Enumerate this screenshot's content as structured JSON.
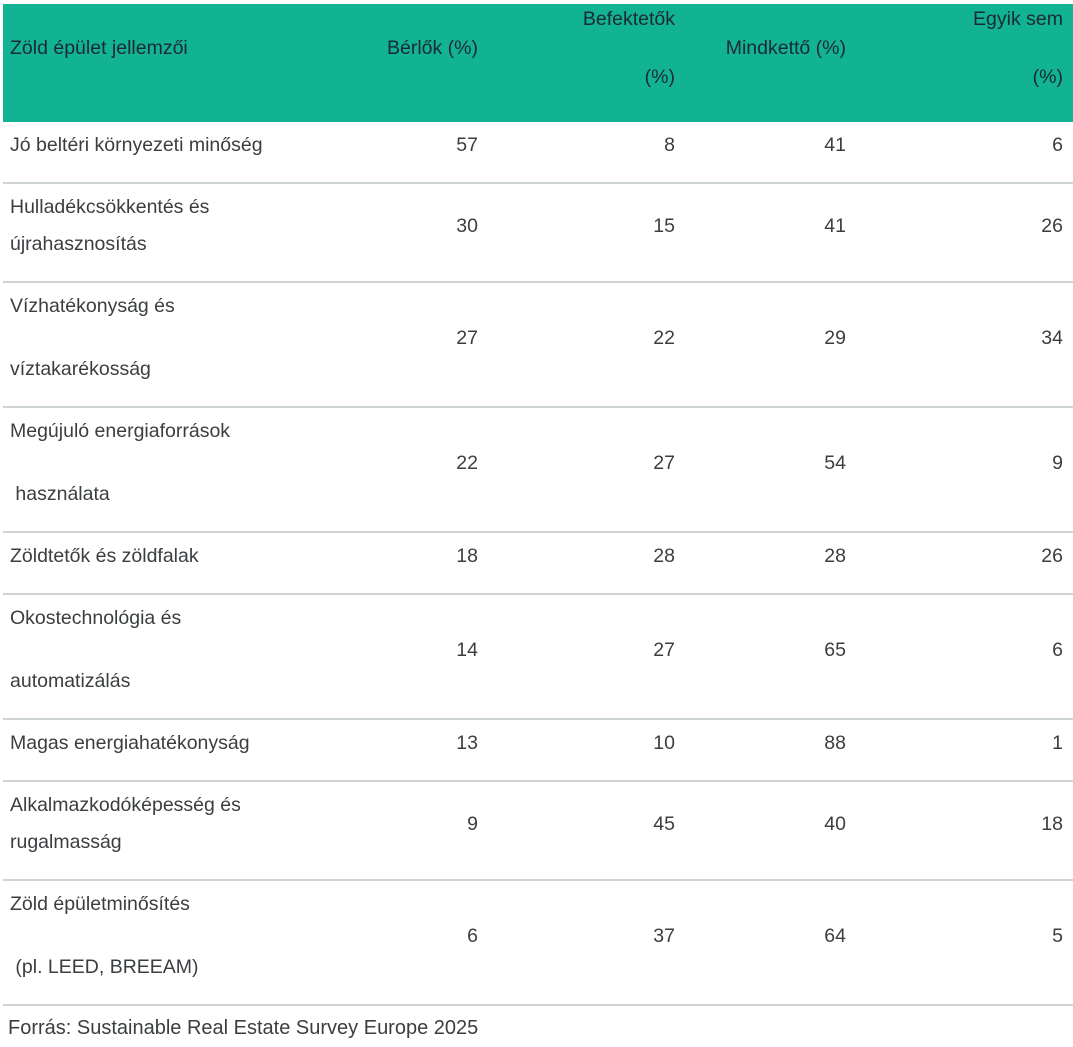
{
  "table": {
    "header": {
      "columns": [
        {
          "label_lines": [
            "Zöld épület jellemzői"
          ],
          "align": "left"
        },
        {
          "label_lines": [
            "Bérlők (%)"
          ],
          "align": "right"
        },
        {
          "label_lines": [
            "Befektetők",
            "(%)"
          ],
          "align": "right"
        },
        {
          "label_lines": [
            "Mindkettő (%)"
          ],
          "align": "right"
        },
        {
          "label_lines": [
            "Egyik sem",
            "(%)"
          ],
          "align": "right"
        }
      ]
    },
    "rows": [
      {
        "feature_lines": [
          "Jó beltéri környezeti minőség"
        ],
        "spacing": "single",
        "values": [
          57,
          8,
          41,
          6
        ]
      },
      {
        "feature_lines": [
          "Hulladékcsökkentés és",
          "újrahasznosítás"
        ],
        "spacing": "tight",
        "values": [
          30,
          15,
          41,
          26
        ]
      },
      {
        "feature_lines": [
          "Vízhatékonyság és",
          "víztakarékosság"
        ],
        "spacing": "spaced",
        "values": [
          27,
          22,
          29,
          34
        ]
      },
      {
        "feature_lines": [
          "Megújuló energiaforrások",
          " használata"
        ],
        "spacing": "spaced",
        "values": [
          22,
          27,
          54,
          9
        ]
      },
      {
        "feature_lines": [
          "Zöldtetők és zöldfalak"
        ],
        "spacing": "single",
        "values": [
          18,
          28,
          28,
          26
        ]
      },
      {
        "feature_lines": [
          "Okostechnológia és",
          "automatizálás"
        ],
        "spacing": "spaced",
        "values": [
          14,
          27,
          65,
          6
        ]
      },
      {
        "feature_lines": [
          "Magas energiahatékonyság"
        ],
        "spacing": "single",
        "values": [
          13,
          10,
          88,
          1
        ]
      },
      {
        "feature_lines": [
          "Alkalmazkodóképesség és",
          "rugalmasság"
        ],
        "spacing": "tight",
        "values": [
          9,
          45,
          40,
          18
        ]
      },
      {
        "feature_lines": [
          "Zöld épületminősítés",
          " (pl. LEED, BREEAM)"
        ],
        "spacing": "spaced",
        "values": [
          6,
          37,
          64,
          5
        ]
      }
    ],
    "source_note": "Forrás: Sustainable Real Estate Survey Europe 2025"
  },
  "colors": {
    "header_bg": "#11b394",
    "header_text": "#1c2a33",
    "body_text": "#3a3e41",
    "separator": "#ced4d4",
    "background": "#ffffff"
  },
  "chart_data": {
    "type": "table",
    "title": "",
    "categories": [
      "Jó beltéri környezeti minőség",
      "Hulladékcsökkentés és újrahasznosítás",
      "Vízhatékonyság és víztakarékosság",
      "Megújuló energiaforrások használata",
      "Zöldtetők és zöldfalak",
      "Okostechnológia és automatizálás",
      "Magas energiahatékonyság",
      "Alkalmazkodóképesség és rugalmasság",
      "Zöld épületminősítés (pl. LEED, BREEAM)"
    ],
    "row_header_label": "Zöld épület jellemzői",
    "series": [
      {
        "name": "Bérlők (%)",
        "values": [
          57,
          30,
          27,
          22,
          18,
          14,
          13,
          9,
          6
        ]
      },
      {
        "name": "Befektetők (%)",
        "values": [
          8,
          15,
          22,
          27,
          28,
          27,
          10,
          45,
          37
        ]
      },
      {
        "name": "Mindkettő (%)",
        "values": [
          41,
          41,
          29,
          54,
          28,
          65,
          88,
          40,
          64
        ]
      },
      {
        "name": "Egyik sem (%)",
        "values": [
          6,
          26,
          34,
          9,
          26,
          6,
          1,
          18,
          5
        ]
      }
    ],
    "source": "Forrás: Sustainable Real Estate Survey Europe 2025"
  }
}
